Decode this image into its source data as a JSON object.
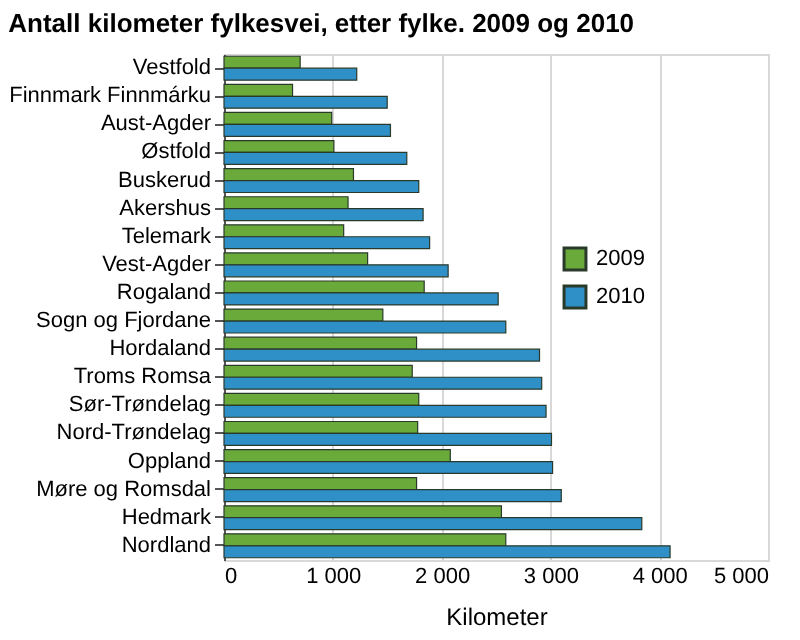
{
  "chart_data": {
    "type": "bar",
    "orientation": "horizontal",
    "title": "Antall kilometer fylkesvei, etter fylke. 2009 og 2010",
    "xlabel": "Kilometer",
    "categories": [
      "Vestfold",
      "Finnmark Finnmárku",
      "Aust-Agder",
      "Østfold",
      "Buskerud",
      "Akershus",
      "Telemark",
      "Vest-Agder",
      "Rogaland",
      "Sogn og Fjordane",
      "Hordaland",
      "Troms Romsa",
      "Sør-Trøndelag",
      "Nord-Trøndelag",
      "Oppland",
      "Møre og Romsdal",
      "Hedmark",
      "Nordland"
    ],
    "series": [
      {
        "name": "2009",
        "color": "#6aaa3a",
        "values": [
          700,
          630,
          990,
          1010,
          1190,
          1140,
          1100,
          1320,
          1840,
          1460,
          1770,
          1730,
          1790,
          1780,
          2080,
          1770,
          2550,
          2590
        ]
      },
      {
        "name": "2010",
        "color": "#2f8fc7",
        "values": [
          1220,
          1500,
          1530,
          1680,
          1790,
          1830,
          1890,
          2060,
          2520,
          2590,
          2900,
          2920,
          2960,
          3010,
          3020,
          3100,
          3840,
          4100
        ]
      }
    ],
    "xlim": [
      0,
      5000
    ],
    "xticks": [
      {
        "value": 0,
        "label": "0"
      },
      {
        "value": 1000,
        "label": "1 000"
      },
      {
        "value": 2000,
        "label": "2 000"
      },
      {
        "value": 3000,
        "label": "3 000"
      },
      {
        "value": 4000,
        "label": "4 000"
      },
      {
        "value": 5000,
        "label": "5 000"
      }
    ],
    "grid": "x",
    "legend": "right"
  }
}
